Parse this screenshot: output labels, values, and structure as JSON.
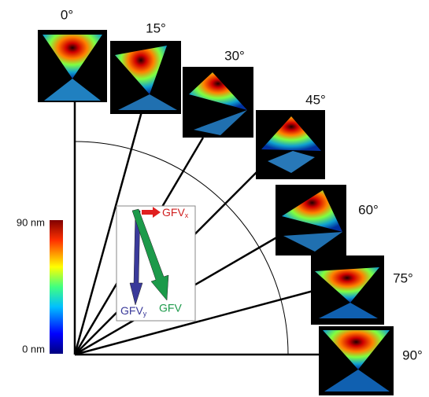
{
  "angles": [
    "0°",
    "15°",
    "30°",
    "45°",
    "60°",
    "75°",
    "90°"
  ],
  "colorbar": {
    "max_label": "90 nm",
    "min_label": "0 nm"
  },
  "inset": {
    "gfv_x": {
      "text": "GFV",
      "subscript": "x"
    },
    "gfv_y": {
      "text": "GFV",
      "subscript": "y"
    },
    "gfv": "GFV"
  }
}
